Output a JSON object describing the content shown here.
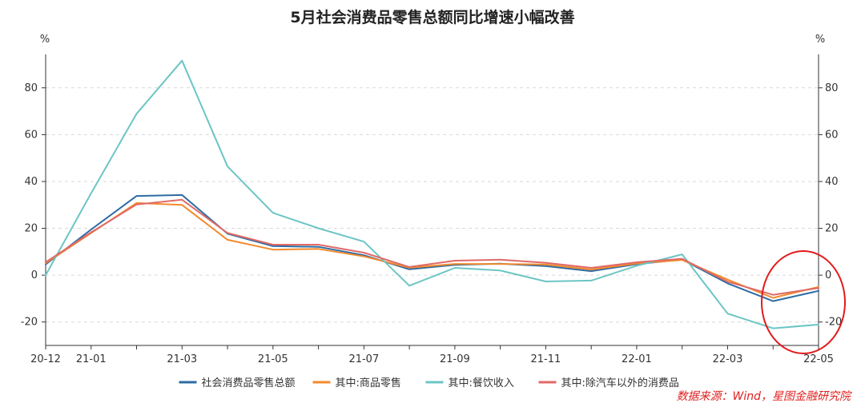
{
  "chart_data": {
    "type": "line",
    "title": "5月社会消费品零售总额同比增速小幅改善",
    "unit_left": "%",
    "unit_right": "%",
    "ylim": [
      -30,
      97
    ],
    "yticks": [
      -20,
      0,
      20,
      40,
      60,
      80
    ],
    "x": [
      "20-12",
      "21-01",
      "21-02",
      "21-03",
      "21-04",
      "21-05",
      "21-06",
      "21-07",
      "21-08",
      "21-09",
      "21-10",
      "21-11",
      "21-12",
      "22-01",
      "22-02",
      "22-03",
      "22-04",
      "22-05"
    ],
    "xtick_labels": [
      "20-12",
      "21-01",
      "21-03",
      "21-05",
      "21-07",
      "21-09",
      "21-11",
      "22-01",
      "22-03",
      "22-05"
    ],
    "grid": true,
    "legend_position": "bottom",
    "series": [
      {
        "name": "社会消费品零售总额",
        "color": "#2e6ca4",
        "values": [
          4.6,
          19.5,
          33.8,
          34.2,
          17.7,
          12.4,
          12.1,
          8.5,
          2.5,
          4.4,
          4.9,
          3.9,
          1.7,
          4.7,
          6.7,
          -3.5,
          -11.1,
          -6.7
        ]
      },
      {
        "name": "其中:商品零售",
        "color": "#f28a2c",
        "values": [
          5.1,
          18.0,
          30.8,
          30.0,
          15.1,
          10.9,
          11.2,
          8.0,
          3.2,
          4.8,
          4.8,
          4.6,
          2.4,
          5.0,
          6.5,
          -1.9,
          -9.7,
          -5.0
        ]
      },
      {
        "name": "其中:餐饮收入",
        "color": "#6cc5c4",
        "values": [
          0.0,
          35.0,
          68.9,
          91.6,
          46.4,
          26.6,
          20.0,
          14.3,
          -4.5,
          3.1,
          2.0,
          -2.7,
          -2.3,
          4.0,
          8.9,
          -16.4,
          -22.7,
          -21.1
        ]
      },
      {
        "name": "其中:除汽车以外的消费品",
        "color": "#e06a66",
        "values": [
          5.5,
          18.3,
          30.2,
          32.2,
          18.0,
          13.0,
          13.0,
          9.6,
          3.5,
          6.2,
          6.6,
          5.3,
          3.1,
          5.5,
          7.0,
          -2.8,
          -8.4,
          -5.5
        ]
      }
    ]
  },
  "source_note": "数据来源：Wind，星图金融研究院"
}
